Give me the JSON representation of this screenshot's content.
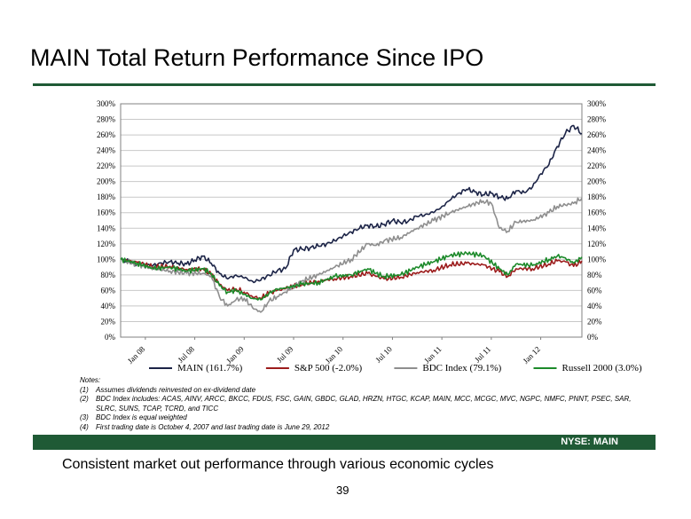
{
  "title": "MAIN Total Return Performance Since IPO",
  "footer": {
    "ticker": "NYSE: MAIN"
  },
  "tagline": "Consistent market out performance through various economic cycles",
  "page_number": "39",
  "notes": {
    "header": "Notes:",
    "items": [
      {
        "num": "(1)",
        "text": "Assumes dividends reinvested on ex-dividend date"
      },
      {
        "num": "(2)",
        "text": "BDC Index includes: ACAS, AINV, ARCC, BKCC, FDUS, FSC, GAIN, GBDC, GLAD, HRZN, HTGC, KCAP, MAIN, MCC, MCGC, MVC, NGPC, NMFC, PNNT, PSEC, SAR, SLRC, SUNS, TCAP, TCRD, and TICC"
      },
      {
        "num": "(3)",
        "text": "BDC Index is equal weighted"
      },
      {
        "num": "(4)",
        "text": "First trading date is October 4, 2007 and last trading date is June 29, 2012"
      }
    ]
  },
  "colors": {
    "brand_green": "#1f5a35",
    "main": "#1c2447",
    "sp500": "#9c1c1c",
    "bdc": "#8e8e8e",
    "russell": "#1c8a2a"
  },
  "chart_data": {
    "type": "line",
    "x_ticks": [
      "Jan 08",
      "Jul 08",
      "Jan 09",
      "Jul 09",
      "Jan 10",
      "Jul 10",
      "Jan 11",
      "Jul 11",
      "Jan 12"
    ],
    "y_ticks": [
      "0%",
      "20%",
      "40%",
      "60%",
      "80%",
      "100%",
      "120%",
      "140%",
      "160%",
      "180%",
      "200%",
      "220%",
      "240%",
      "260%",
      "280%",
      "300%"
    ],
    "ylim": [
      0,
      300
    ],
    "xlim": [
      "2007-10",
      "2012-06"
    ],
    "grid": true,
    "dual_y_axis": true,
    "legend_position": "bottom",
    "series": [
      {
        "name": "MAIN (161.7%)",
        "color": "#1c2447",
        "x": [
          "2007-10",
          "2007-11",
          "2007-12",
          "2008-01",
          "2008-02",
          "2008-03",
          "2008-04",
          "2008-05",
          "2008-06",
          "2008-07",
          "2008-08",
          "2008-09",
          "2008-10",
          "2008-11",
          "2008-12",
          "2009-01",
          "2009-02",
          "2009-03",
          "2009-04",
          "2009-05",
          "2009-06",
          "2009-07",
          "2009-08",
          "2009-09",
          "2009-10",
          "2009-11",
          "2009-12",
          "2010-01",
          "2010-02",
          "2010-03",
          "2010-04",
          "2010-05",
          "2010-06",
          "2010-07",
          "2010-08",
          "2010-09",
          "2010-10",
          "2010-11",
          "2010-12",
          "2011-01",
          "2011-02",
          "2011-03",
          "2011-04",
          "2011-05",
          "2011-06",
          "2011-07",
          "2011-08",
          "2011-09",
          "2011-10",
          "2011-11",
          "2011-12",
          "2012-01",
          "2012-02",
          "2012-03",
          "2012-04",
          "2012-05",
          "2012-06"
        ],
        "values": [
          100,
          97,
          94,
          92,
          93,
          95,
          97,
          95,
          94,
          99,
          104,
          95,
          82,
          75,
          80,
          76,
          72,
          73,
          80,
          85,
          88,
          112,
          113,
          115,
          117,
          120,
          124,
          130,
          135,
          140,
          144,
          142,
          145,
          150,
          147,
          150,
          155,
          158,
          160,
          168,
          176,
          185,
          190,
          187,
          183,
          185,
          180,
          178,
          188,
          186,
          193,
          210,
          222,
          245,
          262,
          272,
          261.7
        ]
      },
      {
        "name": "S&P 500 (-2.0%)",
        "color": "#9c1c1c",
        "x": [
          "2007-10",
          "2007-12",
          "2008-02",
          "2008-04",
          "2008-06",
          "2008-08",
          "2008-09",
          "2008-10",
          "2008-11",
          "2008-12",
          "2009-01",
          "2009-02",
          "2009-03",
          "2009-04",
          "2009-05",
          "2009-06",
          "2009-08",
          "2009-10",
          "2009-12",
          "2010-02",
          "2010-04",
          "2010-05",
          "2010-06",
          "2010-08",
          "2010-10",
          "2010-12",
          "2011-02",
          "2011-04",
          "2011-06",
          "2011-08",
          "2011-09",
          "2011-10",
          "2011-12",
          "2012-02",
          "2012-03",
          "2012-04",
          "2012-05",
          "2012-06"
        ],
        "values": [
          100,
          96,
          90,
          91,
          87,
          88,
          80,
          68,
          60,
          62,
          58,
          52,
          50,
          56,
          60,
          62,
          68,
          72,
          75,
          78,
          82,
          78,
          75,
          77,
          83,
          86,
          93,
          95,
          93,
          84,
          78,
          88,
          88,
          94,
          98,
          97,
          91,
          98
        ]
      },
      {
        "name": "BDC Index (79.1%)",
        "color": "#8e8e8e",
        "x": [
          "2007-10",
          "2007-12",
          "2008-02",
          "2008-04",
          "2008-06",
          "2008-08",
          "2008-09",
          "2008-10",
          "2008-11",
          "2008-12",
          "2009-01",
          "2009-02",
          "2009-03",
          "2009-04",
          "2009-05",
          "2009-06",
          "2009-08",
          "2009-10",
          "2009-12",
          "2010-02",
          "2010-04",
          "2010-05",
          "2010-06",
          "2010-08",
          "2010-10",
          "2010-12",
          "2011-02",
          "2011-04",
          "2011-06",
          "2011-07",
          "2011-08",
          "2011-09",
          "2011-10",
          "2011-12",
          "2012-02",
          "2012-03",
          "2012-04",
          "2012-05",
          "2012-06"
        ],
        "values": [
          100,
          93,
          88,
          85,
          82,
          82,
          78,
          52,
          40,
          48,
          50,
          38,
          32,
          46,
          52,
          58,
          72,
          80,
          90,
          100,
          120,
          118,
          124,
          128,
          140,
          150,
          160,
          168,
          175,
          172,
          140,
          136,
          148,
          150,
          160,
          168,
          170,
          172,
          179
        ]
      },
      {
        "name": "Russell 2000 (3.0%)",
        "color": "#1c8a2a",
        "x": [
          "2007-10",
          "2007-12",
          "2008-02",
          "2008-04",
          "2008-06",
          "2008-08",
          "2008-09",
          "2008-10",
          "2008-11",
          "2008-12",
          "2009-01",
          "2009-02",
          "2009-03",
          "2009-04",
          "2009-05",
          "2009-06",
          "2009-08",
          "2009-10",
          "2009-12",
          "2010-02",
          "2010-04",
          "2010-05",
          "2010-06",
          "2010-08",
          "2010-10",
          "2010-12",
          "2011-02",
          "2011-04",
          "2011-06",
          "2011-08",
          "2011-09",
          "2011-10",
          "2011-12",
          "2012-02",
          "2012-03",
          "2012-04",
          "2012-05",
          "2012-06"
        ],
        "values": [
          100,
          95,
          88,
          90,
          85,
          88,
          82,
          66,
          58,
          60,
          55,
          50,
          48,
          56,
          62,
          63,
          68,
          70,
          78,
          80,
          88,
          82,
          78,
          80,
          90,
          97,
          105,
          108,
          105,
          88,
          80,
          94,
          92,
          100,
          104,
          102,
          95,
          103
        ]
      }
    ]
  }
}
